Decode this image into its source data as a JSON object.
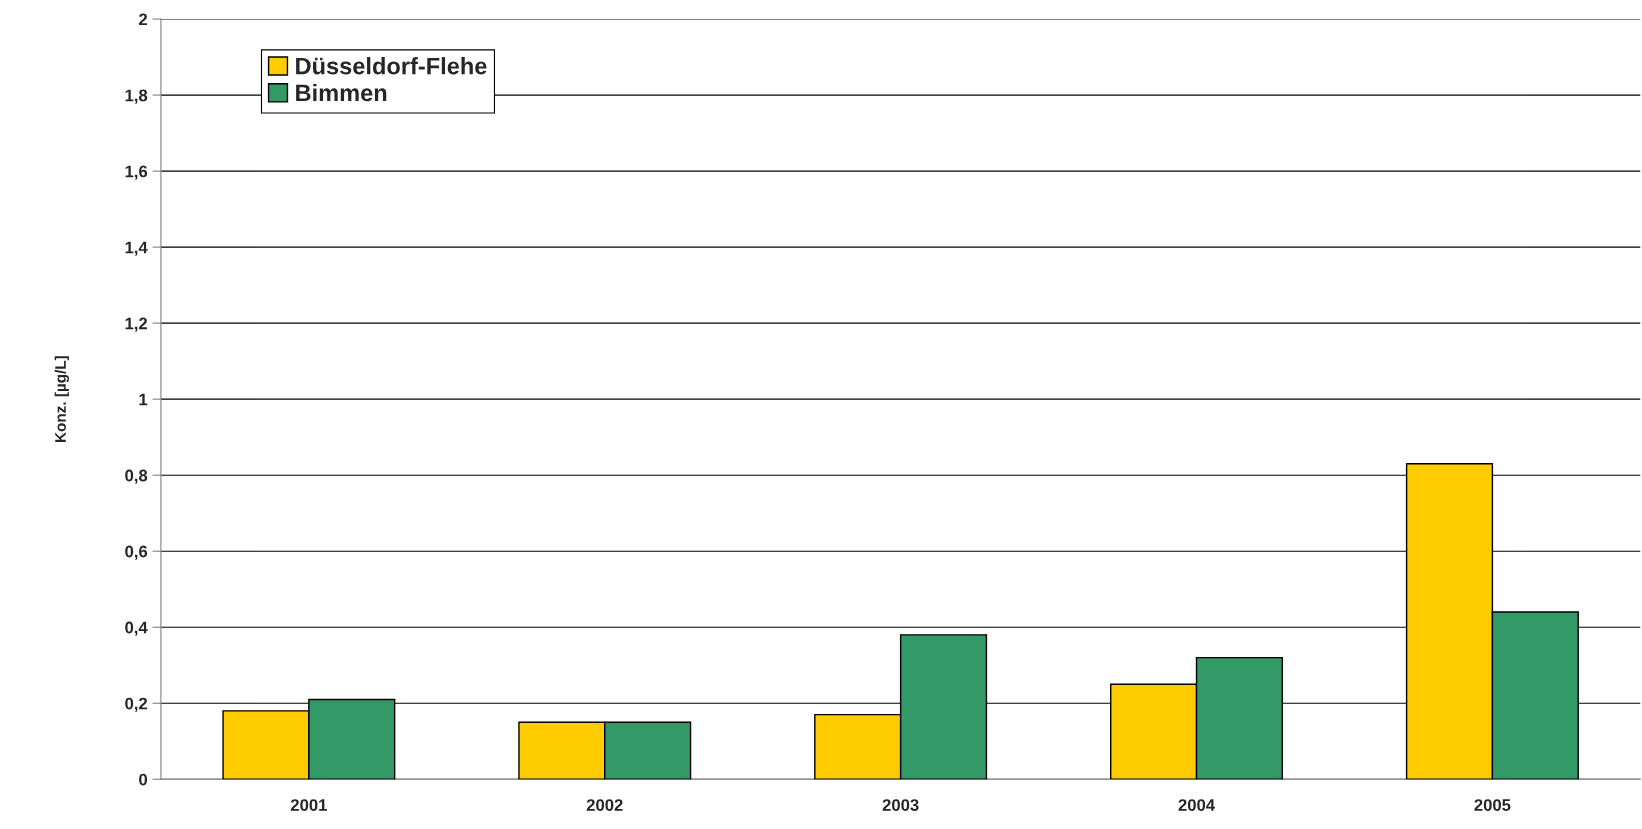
{
  "chart_data": {
    "type": "bar",
    "ylabel": "Konz. [µg/L]",
    "categories": [
      "2001",
      "2002",
      "2003",
      "2004",
      "2005"
    ],
    "series": [
      {
        "name": "Düsseldorf-Flehe",
        "color": "#ffcc00",
        "values": [
          0.18,
          0.15,
          0.17,
          0.25,
          0.83
        ]
      },
      {
        "name": "Bimmen",
        "color": "#339966",
        "values": [
          0.21,
          0.15,
          0.38,
          0.32,
          0.44
        ]
      }
    ],
    "ylim": [
      0,
      2
    ],
    "yticks": [
      0,
      {
        "value": 0.2,
        "label": "0,2"
      },
      {
        "value": 0.4,
        "label": "0,4"
      },
      {
        "value": 0.6,
        "label": "0,6"
      },
      {
        "value": 0.8,
        "label": "0,8"
      },
      1,
      {
        "value": 1.2,
        "label": "1,2"
      },
      {
        "value": 1.4,
        "label": "1,4"
      },
      {
        "value": 1.6,
        "label": "1,6"
      },
      {
        "value": 1.8,
        "label": "1,8"
      },
      2
    ],
    "grid": "y",
    "legend": "top left"
  }
}
